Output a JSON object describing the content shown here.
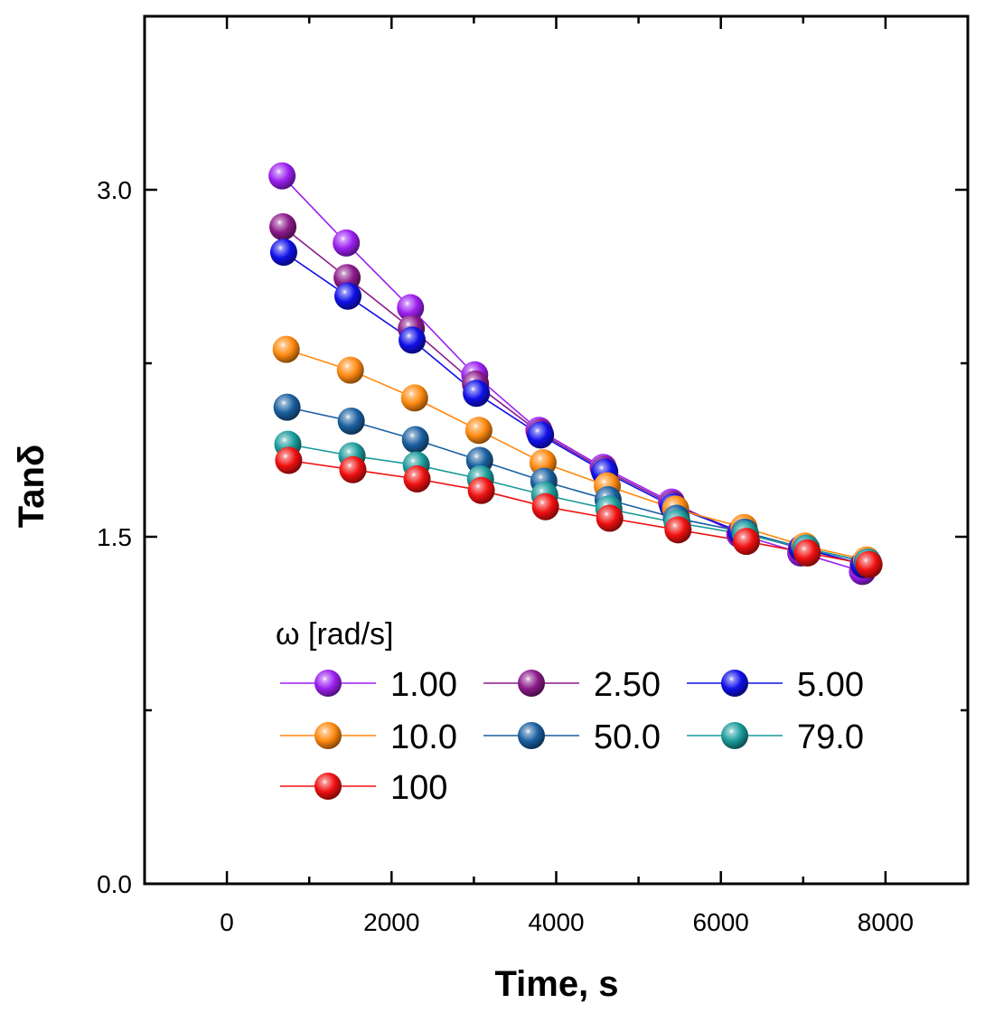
{
  "chart_data": {
    "type": "line",
    "xlabel": "Time, s",
    "ylabel": "Tanδ",
    "xlim": [
      -1000,
      9000
    ],
    "ylim": [
      0,
      3.75
    ],
    "xticks": [
      0,
      2000,
      4000,
      6000,
      8000
    ],
    "xtick_labels": [
      "0",
      "2000",
      "4000",
      "6000",
      "8000"
    ],
    "yticks": [
      0.0,
      1.5,
      3.0
    ],
    "ytick_labels": [
      "0.0",
      "1.5",
      "3.0"
    ],
    "legend_title": "ω [rad/s]",
    "legend_position": "lower-left",
    "series": [
      {
        "name": "1.00",
        "color": "#9b1ff0",
        "x": [
          670,
          1450,
          2230,
          3010,
          3790,
          4570,
          5400,
          6230,
          6970,
          7720
        ],
        "y": [
          3.06,
          2.77,
          2.49,
          2.2,
          1.96,
          1.8,
          1.65,
          1.51,
          1.43,
          1.35
        ]
      },
      {
        "name": "2.50",
        "color": "#8b1a8a",
        "x": [
          680,
          1460,
          2240,
          3020,
          3800,
          4580,
          5410,
          6240,
          6980,
          7730
        ],
        "y": [
          2.84,
          2.62,
          2.4,
          2.16,
          1.95,
          1.79,
          1.64,
          1.52,
          1.45,
          1.38
        ]
      },
      {
        "name": "5.00",
        "color": "#1010e8",
        "x": [
          690,
          1470,
          2250,
          3030,
          3810,
          4590,
          5420,
          6250,
          6990,
          7740
        ],
        "y": [
          2.73,
          2.54,
          2.35,
          2.12,
          1.94,
          1.78,
          1.63,
          1.52,
          1.45,
          1.38
        ]
      },
      {
        "name": "10.0",
        "color": "#ff8a10",
        "x": [
          720,
          1500,
          2280,
          3060,
          3840,
          4620,
          5450,
          6280,
          7020,
          7770
        ],
        "y": [
          2.31,
          2.22,
          2.1,
          1.96,
          1.82,
          1.72,
          1.62,
          1.54,
          1.46,
          1.4
        ]
      },
      {
        "name": "50.0",
        "color": "#1a5fa0",
        "x": [
          730,
          1510,
          2290,
          3070,
          3850,
          4630,
          5460,
          6290,
          7030,
          7780
        ],
        "y": [
          2.06,
          2.0,
          1.92,
          1.83,
          1.74,
          1.66,
          1.58,
          1.52,
          1.45,
          1.39
        ]
      },
      {
        "name": "79.0",
        "color": "#1a9a9a",
        "x": [
          740,
          1520,
          2300,
          3080,
          3860,
          4640,
          5470,
          6300,
          7040,
          7790
        ],
        "y": [
          1.9,
          1.85,
          1.81,
          1.75,
          1.68,
          1.62,
          1.56,
          1.51,
          1.45,
          1.39
        ]
      },
      {
        "name": "100",
        "color": "#f01010",
        "x": [
          750,
          1530,
          2310,
          3090,
          3870,
          4650,
          5480,
          6310,
          7050,
          7800
        ],
        "y": [
          1.83,
          1.79,
          1.75,
          1.7,
          1.63,
          1.58,
          1.53,
          1.48,
          1.43,
          1.38
        ]
      }
    ]
  }
}
